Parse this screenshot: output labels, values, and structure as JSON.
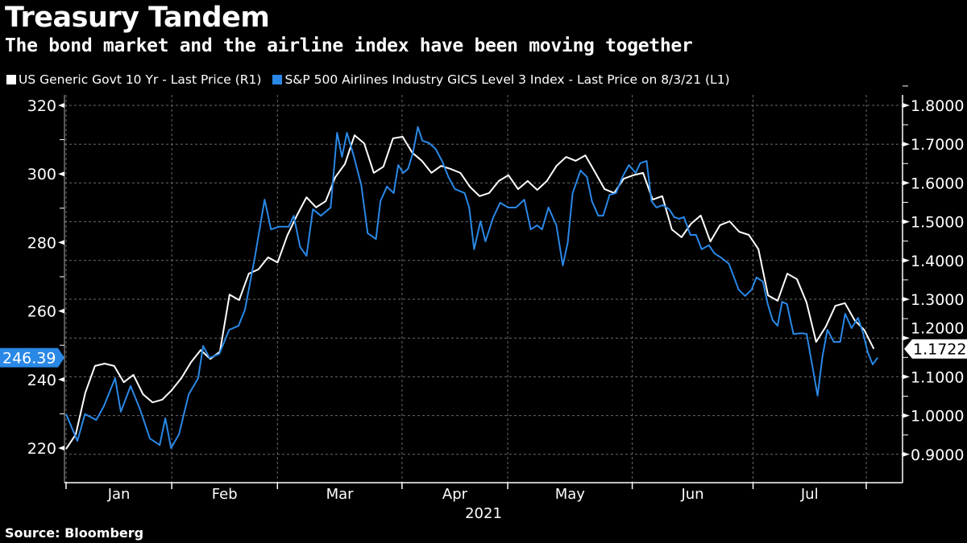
{
  "title": "Treasury Tandem",
  "subtitle": "The bond market and the airline index have been moving together",
  "source": "Source: Bloomberg",
  "colors": {
    "white_series": "#ffffff",
    "blue_series": "#2a88e6",
    "grid": "#6a6a6a",
    "background": "#000000"
  },
  "chart_data": {
    "type": "line",
    "xlabel": "2021",
    "x_unit": "approx. days since Jan 1, 2021",
    "xlim": [
      0,
      217
    ],
    "month_labels": [
      "Jan",
      "Feb",
      "Mar",
      "Apr",
      "May",
      "Jun",
      "Jul"
    ],
    "month_gridline_days": [
      0,
      28,
      56,
      89,
      117,
      150,
      182,
      212
    ],
    "grid": true,
    "legend_position": "top-left",
    "left_axis": {
      "ylim": [
        210,
        324
      ],
      "ticks": [
        220,
        240,
        260,
        280,
        300,
        320
      ],
      "minor_step": 10
    },
    "right_axis": {
      "ylim": [
        0.83,
        1.82
      ],
      "ticks": [
        0.9,
        1.0,
        1.1,
        1.2,
        1.3,
        1.4,
        1.5,
        1.6,
        1.7,
        1.8
      ],
      "tick_labels": [
        "0.9000",
        "1.0000",
        "1.1000",
        "1.2000",
        "1.3000",
        "1.4000",
        "1.5000",
        "1.6000",
        "1.7000",
        "1.8000"
      ]
    },
    "series": [
      {
        "name": "US Generic Govt 10 Yr - Last Price (R1)",
        "axis": "right",
        "last_value_label": "1.1722",
        "x_start": 0,
        "x_end": 214,
        "values": [
          0.914,
          0.951,
          1.059,
          1.128,
          1.134,
          1.128,
          1.086,
          1.105,
          1.055,
          1.034,
          1.041,
          1.066,
          1.097,
          1.138,
          1.169,
          1.146,
          1.165,
          1.312,
          1.298,
          1.366,
          1.377,
          1.408,
          1.395,
          1.464,
          1.516,
          1.563,
          1.537,
          1.553,
          1.615,
          1.649,
          1.723,
          1.702,
          1.626,
          1.642,
          1.715,
          1.719,
          1.678,
          1.657,
          1.626,
          1.644,
          1.636,
          1.626,
          1.59,
          1.566,
          1.574,
          1.605,
          1.62,
          1.584,
          1.605,
          1.582,
          1.605,
          1.644,
          1.667,
          1.657,
          1.671,
          1.628,
          1.584,
          1.574,
          1.611,
          1.62,
          1.626,
          1.557,
          1.566,
          1.48,
          1.46,
          1.495,
          1.516,
          1.449,
          1.491,
          1.501,
          1.474,
          1.466,
          1.429,
          1.31,
          1.296,
          1.366,
          1.352,
          1.292,
          1.19,
          1.229,
          1.283,
          1.29,
          1.246,
          1.221,
          1.172
        ]
      },
      {
        "name": "S&P 500 Airlines Industry GICS Level 3 Index - Last Price on 8/3/21 (L1)",
        "axis": "left",
        "last_value_label": "246.39",
        "points": [
          [
            0,
            229.9
          ],
          [
            3,
            222.1
          ],
          [
            5,
            229.9
          ],
          [
            8,
            228.2
          ],
          [
            10,
            232.2
          ],
          [
            13,
            240.4
          ],
          [
            14.5,
            230.6
          ],
          [
            17.1,
            238.1
          ],
          [
            19.7,
            231.0
          ],
          [
            22.2,
            222.8
          ],
          [
            24.8,
            220.9
          ],
          [
            26.3,
            228.7
          ],
          [
            27.8,
            220.0
          ],
          [
            29.9,
            224.0
          ],
          [
            32.5,
            235.7
          ],
          [
            35,
            240.4
          ],
          [
            36.3,
            249.8
          ],
          [
            38,
            246.3
          ],
          [
            40.6,
            247.5
          ],
          [
            43.2,
            254.5
          ],
          [
            45.7,
            255.7
          ],
          [
            47.4,
            260.4
          ],
          [
            50,
            275.6
          ],
          [
            52.6,
            292.5
          ],
          [
            54.3,
            283.8
          ],
          [
            56.4,
            284.6
          ],
          [
            59,
            284.6
          ],
          [
            60.3,
            287.8
          ],
          [
            62,
            278.7
          ],
          [
            63.7,
            276.1
          ],
          [
            65.4,
            289.7
          ],
          [
            67.5,
            287.8
          ],
          [
            70.1,
            290.2
          ],
          [
            71.8,
            312.0
          ],
          [
            73.1,
            305.0
          ],
          [
            74.4,
            312.0
          ],
          [
            76.1,
            305.7
          ],
          [
            78.2,
            296.8
          ],
          [
            79.9,
            282.7
          ],
          [
            82.1,
            281.0
          ],
          [
            83.3,
            292.1
          ],
          [
            85,
            296.3
          ],
          [
            86.8,
            294.4
          ],
          [
            88,
            302.6
          ],
          [
            89.3,
            300.3
          ],
          [
            90.6,
            301.5
          ],
          [
            91.9,
            306.2
          ],
          [
            93.2,
            313.7
          ],
          [
            94.4,
            309.7
          ],
          [
            96.2,
            309.0
          ],
          [
            97.9,
            307.3
          ],
          [
            99.6,
            303.8
          ],
          [
            101.3,
            299.1
          ],
          [
            103,
            295.6
          ],
          [
            105.6,
            294.4
          ],
          [
            106.8,
            290.2
          ],
          [
            108.1,
            278.0
          ],
          [
            109.8,
            286.2
          ],
          [
            111.1,
            280.3
          ],
          [
            113.2,
            287.4
          ],
          [
            115,
            291.6
          ],
          [
            117.1,
            290.2
          ],
          [
            119.2,
            290.2
          ],
          [
            121.4,
            292.5
          ],
          [
            123.1,
            283.8
          ],
          [
            124.8,
            285.0
          ],
          [
            126.1,
            283.8
          ],
          [
            127.8,
            290.2
          ],
          [
            129.9,
            285.0
          ],
          [
            131.6,
            273.3
          ],
          [
            132.9,
            279.9
          ],
          [
            134.2,
            294.4
          ],
          [
            136.3,
            301.0
          ],
          [
            138,
            299.1
          ],
          [
            139.3,
            292.1
          ],
          [
            141,
            287.8
          ],
          [
            142.3,
            287.8
          ],
          [
            144,
            293.9
          ],
          [
            145.7,
            294.4
          ],
          [
            147.4,
            299.1
          ],
          [
            149.1,
            302.6
          ],
          [
            150.9,
            300.3
          ],
          [
            152.1,
            303.1
          ],
          [
            153.8,
            303.8
          ],
          [
            155.1,
            292.1
          ],
          [
            156.4,
            290.2
          ],
          [
            158.1,
            290.9
          ],
          [
            159.8,
            289.7
          ],
          [
            161.1,
            287.4
          ],
          [
            162.4,
            286.9
          ],
          [
            163.7,
            287.4
          ],
          [
            165.4,
            282.2
          ],
          [
            166.9,
            282.2
          ],
          [
            168.4,
            278.0
          ],
          [
            170.3,
            279.2
          ],
          [
            171.8,
            276.8
          ],
          [
            173.5,
            275.6
          ],
          [
            175.6,
            273.8
          ],
          [
            178.2,
            266.2
          ],
          [
            179.9,
            264.4
          ],
          [
            181.6,
            266.2
          ],
          [
            182.9,
            269.8
          ],
          [
            184.6,
            268.6
          ],
          [
            185.9,
            262.0
          ],
          [
            187.2,
            257.3
          ],
          [
            188.5,
            255.7
          ],
          [
            189.7,
            262.7
          ],
          [
            191,
            262.0
          ],
          [
            192.7,
            253.3
          ],
          [
            194.9,
            253.5
          ],
          [
            196.2,
            253.3
          ],
          [
            197.9,
            242.8
          ],
          [
            199.1,
            235.3
          ],
          [
            200.4,
            246.8
          ],
          [
            201.7,
            254.5
          ],
          [
            203.4,
            251.0
          ],
          [
            205.1,
            251.0
          ],
          [
            206.4,
            259.2
          ],
          [
            208.1,
            255.0
          ],
          [
            209.8,
            258.0
          ],
          [
            211.1,
            253.8
          ],
          [
            212.4,
            247.9
          ],
          [
            213.7,
            244.4
          ],
          [
            215,
            246.39
          ]
        ]
      }
    ]
  }
}
